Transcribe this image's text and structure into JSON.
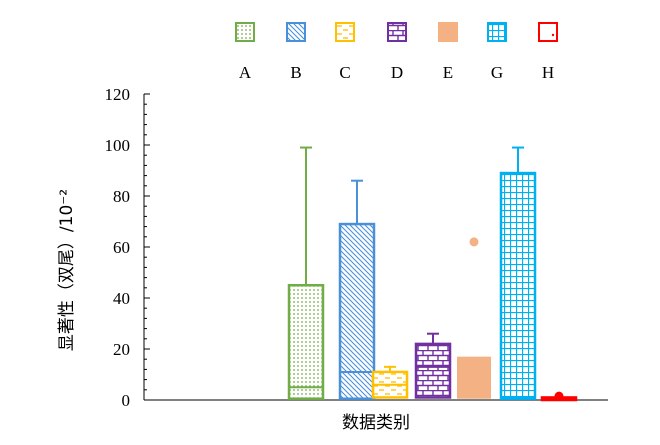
{
  "chart_data": {
    "type": "box",
    "title": "",
    "xlabel": "数据类别",
    "ylabel": "显著性（双尾）/10⁻²",
    "ylim": [
      0,
      120
    ],
    "yticks": [
      0,
      20,
      40,
      60,
      80,
      100,
      120
    ],
    "grid": false,
    "legend_position": "top",
    "series": [
      {
        "name": "A",
        "color": "#70ad47",
        "pattern": "dots",
        "q1": 0.5,
        "median": 5,
        "q3": 45,
        "whisker_low": 0,
        "whisker_high": 99,
        "outliers": []
      },
      {
        "name": "B",
        "color": "#4a90d9",
        "pattern": "diagonal",
        "q1": 0.5,
        "median": 11,
        "q3": 69,
        "whisker_low": 0,
        "whisker_high": 86,
        "outliers": []
      },
      {
        "name": "C",
        "color": "#ffc000",
        "pattern": "dashes",
        "q1": 1,
        "median": 6,
        "q3": 11,
        "whisker_low": 0,
        "whisker_high": 13,
        "outliers": []
      },
      {
        "name": "D",
        "color": "#7030a0",
        "pattern": "brick",
        "q1": 1,
        "median": 13,
        "q3": 22,
        "whisker_low": 0,
        "whisker_high": 26,
        "outliers": []
      },
      {
        "name": "E",
        "color": "#f4b183",
        "pattern": "solid",
        "q1": 0.5,
        "median": 1,
        "q3": 17,
        "whisker_low": 0,
        "whisker_high": 17,
        "outliers": [
          62
        ]
      },
      {
        "name": "G",
        "color": "#00b0f0",
        "pattern": "grid",
        "q1": 0.5,
        "median": 1,
        "q3": 89,
        "whisker_low": 0,
        "whisker_high": 99,
        "outliers": []
      },
      {
        "name": "H",
        "color": "#ff0000",
        "pattern": "dot",
        "q1": 0,
        "median": 0.5,
        "q3": 1,
        "whisker_low": 0,
        "whisker_high": 1,
        "outliers": [
          1.5
        ]
      }
    ]
  }
}
